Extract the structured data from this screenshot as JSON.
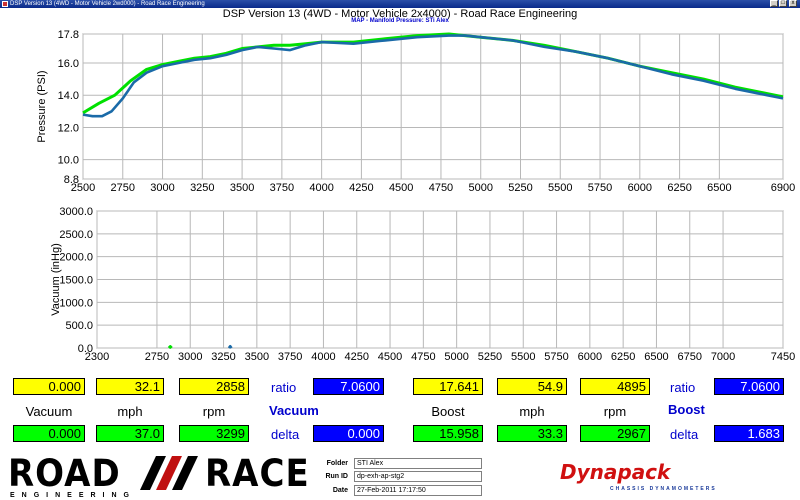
{
  "window": {
    "title": "DSP Version 13 (4WD - Motor Vehicle 2wd000) - Road Race Engineering",
    "buttons": [
      "_",
      "□",
      "x"
    ]
  },
  "header": {
    "title": "DSP Version 13 (4WD - Motor Vehicle 2x4000) - Road Race Engineering",
    "subtitle": "MAP - Manifold Pressure: STi Alex"
  },
  "chart_data": [
    {
      "type": "line",
      "ylabel": "Pressure (PSI)",
      "ylim": [
        8.8,
        17.8
      ],
      "yticks": [
        "17.8",
        "16.0",
        "14.0",
        "12.0",
        "10.0",
        "8.8"
      ],
      "xlim": [
        2500,
        6900
      ],
      "xticks": [
        "2500",
        "2750",
        "3000",
        "3250",
        "3500",
        "3750",
        "4000",
        "4250",
        "4500",
        "4750",
        "5000",
        "5250",
        "5500",
        "5750",
        "6000",
        "6250",
        "6500",
        "6900"
      ],
      "grid": true,
      "series": [
        {
          "color": "#00e000",
          "x": [
            2500,
            2600,
            2700,
            2800,
            2900,
            3000,
            3100,
            3200,
            3300,
            3400,
            3500,
            3600,
            3700,
            3800,
            3900,
            4000,
            4200,
            4400,
            4600,
            4800,
            4900,
            5000,
            5200,
            5400,
            5600,
            5800,
            6000,
            6200,
            6400,
            6600,
            6800,
            6900
          ],
          "y": [
            12.9,
            13.5,
            14.0,
            14.9,
            15.6,
            15.9,
            16.1,
            16.3,
            16.4,
            16.6,
            16.9,
            17.0,
            17.1,
            17.1,
            17.2,
            17.3,
            17.3,
            17.5,
            17.7,
            17.8,
            17.7,
            17.6,
            17.4,
            17.1,
            16.7,
            16.3,
            15.8,
            15.4,
            15.0,
            14.5,
            14.1,
            13.9
          ]
        },
        {
          "color": "#1a6aa8",
          "x": [
            2500,
            2560,
            2620,
            2680,
            2750,
            2820,
            2900,
            3000,
            3100,
            3200,
            3300,
            3400,
            3500,
            3600,
            3700,
            3800,
            3900,
            4000,
            4200,
            4400,
            4600,
            4800,
            4900,
            5000,
            5200,
            5400,
            5600,
            5800,
            6000,
            6200,
            6400,
            6600,
            6800,
            6900
          ],
          "y": [
            12.8,
            12.7,
            12.7,
            13.0,
            13.8,
            14.8,
            15.4,
            15.8,
            16.0,
            16.2,
            16.3,
            16.5,
            16.8,
            17.0,
            16.9,
            16.8,
            17.1,
            17.3,
            17.2,
            17.4,
            17.6,
            17.7,
            17.7,
            17.6,
            17.4,
            17.0,
            16.7,
            16.3,
            15.8,
            15.3,
            14.9,
            14.4,
            14.0,
            13.8
          ]
        }
      ]
    },
    {
      "type": "line",
      "ylabel": "Vacuum (inHg)",
      "ylim": [
        0,
        3000
      ],
      "yticks": [
        "3000.0",
        "2500.0",
        "2000.0",
        "1500.0",
        "1000.0",
        "500.0",
        "0.0"
      ],
      "xlim": [
        2300,
        7450
      ],
      "xticks": [
        "2300",
        "2750",
        "3000",
        "3250",
        "3500",
        "3750",
        "4000",
        "4250",
        "4500",
        "4750",
        "5000",
        "5250",
        "5500",
        "5750",
        "6000",
        "6250",
        "6500",
        "6750",
        "7000",
        "7450"
      ],
      "grid": true,
      "series": [
        {
          "color": "#00e000",
          "x": [
            2840,
            2850,
            2860
          ],
          "y": [
            0,
            30,
            0
          ]
        },
        {
          "color": "#1a6aa8",
          "x": [
            3290,
            3300,
            3310
          ],
          "y": [
            0,
            40,
            0
          ]
        }
      ]
    }
  ],
  "readouts": {
    "row1": {
      "vacuum": "0.000",
      "mph": "32.1",
      "rpm": "2858",
      "ratio_label": "ratio",
      "ratio_vac": "7.0600",
      "boost": "17.641",
      "boost_mph": "54.9",
      "boost_rpm": "4895",
      "ratio_label2": "ratio",
      "ratio_boost": "7.0600"
    },
    "labels": {
      "vacuum": "Vacuum",
      "mph": "mph",
      "rpm": "rpm",
      "vacuum_heading": "Vacuum",
      "boost": "Boost",
      "mph2": "mph",
      "rpm2": "rpm",
      "boost_heading": "Boost"
    },
    "row2": {
      "vacuum": "0.000",
      "mph": "37.0",
      "rpm": "3299",
      "delta_label": "delta",
      "delta_vac": "0.000",
      "boost": "15.958",
      "boost_mph": "33.3",
      "boost_rpm": "2967",
      "delta_label2": "delta",
      "delta_boost": "1.683"
    }
  },
  "footer": {
    "logo_left": "ROAD",
    "logo_right": "RACE",
    "logo_sub": "ENGINEERING",
    "folder_label": "Folder",
    "folder_value": "STI Alex",
    "runid_label": "Run ID",
    "runid_value": "dp-exh-ap-stg2",
    "date_label": "Date",
    "date_value": "27-Feb-2011 17:17:50",
    "brand": "Dynapack",
    "brand_sub": "CHASSIS DYNAMOMETERS"
  },
  "colors": {
    "series_green": "#00e000",
    "series_blue": "#1a6aa8",
    "readout_yellow": "#ffff00",
    "readout_green": "#00ff00",
    "readout_blue": "#0000ff",
    "brand_red": "#d01010"
  }
}
